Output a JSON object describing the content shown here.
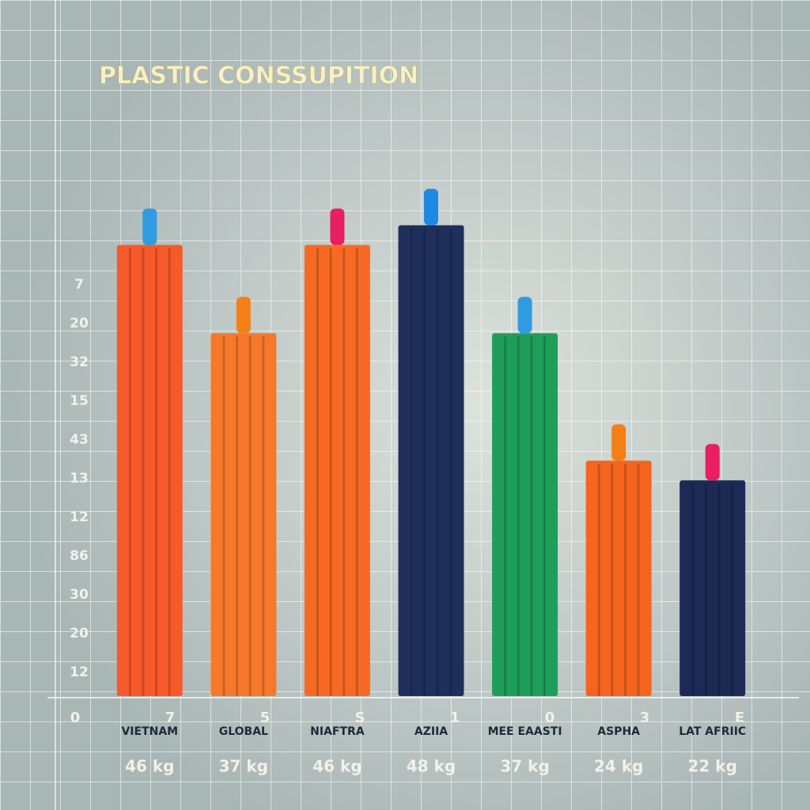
{
  "chart_data": {
    "type": "bar",
    "title": "PLASTIC CONSSUPITION",
    "categories": [
      "VIETNAM",
      "GLOBAL",
      "NIAFTRA",
      "AZIIA",
      "MEE EAASTI",
      "ASPHA",
      "LAT AFRIIC"
    ],
    "values": [
      46,
      37,
      46,
      48,
      37,
      24,
      22
    ],
    "value_labels": [
      "46 kg",
      "37 kg",
      "46 kg",
      "48 kg",
      "37 kg",
      "24 kg",
      "22 kg"
    ],
    "colors": [
      "#f75a2a",
      "#f7782a",
      "#f86a24",
      "#1f2f5c",
      "#1f9e5a",
      "#f5651f",
      "#1c2a55"
    ],
    "ylim": [
      0,
      50
    ],
    "y_axis_labels": [
      "7",
      "20",
      "32",
      "15",
      "43",
      "13",
      "12",
      "86",
      "30",
      "20",
      "12"
    ],
    "x_axis_labels": [
      "0",
      "7",
      "5",
      "S",
      "1",
      "0",
      "3",
      "E"
    ]
  }
}
